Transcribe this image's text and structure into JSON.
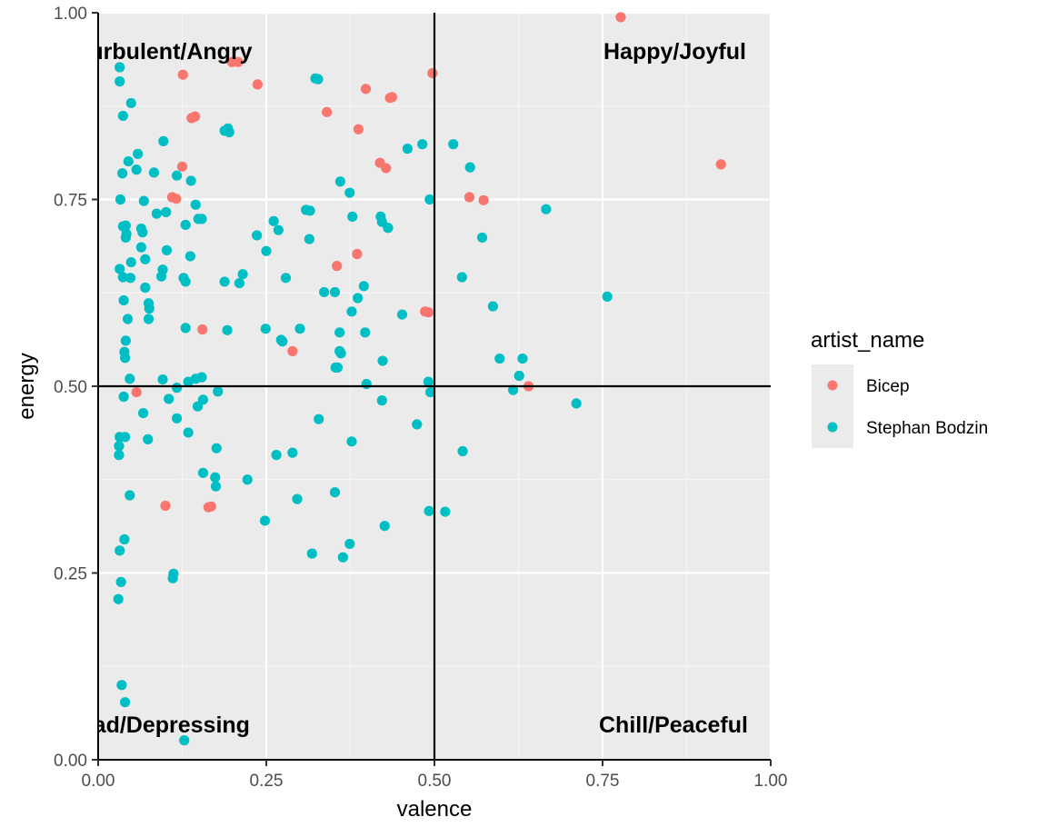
{
  "chart_data": {
    "type": "scatter",
    "xlabel": "valence",
    "ylabel": "energy",
    "xlim": [
      0,
      1
    ],
    "ylim": [
      0,
      1
    ],
    "x_ticks": [
      "0.00",
      "0.25",
      "0.50",
      "0.75",
      "1.00"
    ],
    "y_ticks": [
      "0.00",
      "0.25",
      "0.50",
      "0.75",
      "1.00"
    ],
    "grid": true,
    "reference_lines": {
      "x": 0.5,
      "y": 0.5
    },
    "quadrant_labels": {
      "top_left": "Turbulent/Angry",
      "top_right": "Happy/Joyful",
      "bottom_left": "Sad/Depressing",
      "bottom_right": "Chill/Peaceful"
    },
    "legend": {
      "title": "artist_name",
      "position": "right"
    },
    "series": [
      {
        "name": "Bicep",
        "color": "#F8766D",
        "points": [
          [
            0.777,
            0.994
          ],
          [
            0.199,
            0.934
          ],
          [
            0.208,
            0.934
          ],
          [
            0.126,
            0.917
          ],
          [
            0.497,
            0.919
          ],
          [
            0.237,
            0.904
          ],
          [
            0.398,
            0.898
          ],
          [
            0.434,
            0.886
          ],
          [
            0.437,
            0.887
          ],
          [
            0.34,
            0.867
          ],
          [
            0.139,
            0.859
          ],
          [
            0.144,
            0.861
          ],
          [
            0.387,
            0.844
          ],
          [
            0.419,
            0.799
          ],
          [
            0.428,
            0.792
          ],
          [
            0.125,
            0.794
          ],
          [
            0.926,
            0.797
          ],
          [
            0.11,
            0.753
          ],
          [
            0.116,
            0.751
          ],
          [
            0.552,
            0.753
          ],
          [
            0.573,
            0.749
          ],
          [
            0.385,
            0.677
          ],
          [
            0.355,
            0.661
          ],
          [
            0.486,
            0.6
          ],
          [
            0.491,
            0.599
          ],
          [
            0.155,
            0.576
          ],
          [
            0.289,
            0.547
          ],
          [
            0.057,
            0.492
          ],
          [
            0.64,
            0.5
          ],
          [
            0.1,
            0.34
          ],
          [
            0.164,
            0.338
          ],
          [
            0.168,
            0.339
          ]
        ]
      },
      {
        "name": "Stephan Bodzin",
        "color": "#00BFC4",
        "points": [
          [
            0.032,
            0.927
          ],
          [
            0.032,
            0.908
          ],
          [
            0.049,
            0.879
          ],
          [
            0.037,
            0.862
          ],
          [
            0.323,
            0.912
          ],
          [
            0.327,
            0.911
          ],
          [
            0.188,
            0.842
          ],
          [
            0.193,
            0.845
          ],
          [
            0.195,
            0.84
          ],
          [
            0.097,
            0.828
          ],
          [
            0.46,
            0.818
          ],
          [
            0.482,
            0.824
          ],
          [
            0.528,
            0.824
          ],
          [
            0.059,
            0.811
          ],
          [
            0.045,
            0.801
          ],
          [
            0.057,
            0.79
          ],
          [
            0.083,
            0.786
          ],
          [
            0.036,
            0.785
          ],
          [
            0.117,
            0.782
          ],
          [
            0.138,
            0.775
          ],
          [
            0.36,
            0.774
          ],
          [
            0.553,
            0.793
          ],
          [
            0.374,
            0.759
          ],
          [
            0.033,
            0.75
          ],
          [
            0.068,
            0.748
          ],
          [
            0.145,
            0.743
          ],
          [
            0.493,
            0.75
          ],
          [
            0.309,
            0.736
          ],
          [
            0.315,
            0.735
          ],
          [
            0.666,
            0.737
          ],
          [
            0.087,
            0.731
          ],
          [
            0.101,
            0.733
          ],
          [
            0.149,
            0.724
          ],
          [
            0.154,
            0.724
          ],
          [
            0.378,
            0.727
          ],
          [
            0.42,
            0.727
          ],
          [
            0.422,
            0.72
          ],
          [
            0.261,
            0.721
          ],
          [
            0.037,
            0.714
          ],
          [
            0.041,
            0.715
          ],
          [
            0.13,
            0.716
          ],
          [
            0.431,
            0.712
          ],
          [
            0.042,
            0.704
          ],
          [
            0.064,
            0.711
          ],
          [
            0.066,
            0.706
          ],
          [
            0.268,
            0.709
          ],
          [
            0.236,
            0.702
          ],
          [
            0.041,
            0.699
          ],
          [
            0.314,
            0.697
          ],
          [
            0.571,
            0.699
          ],
          [
            0.064,
            0.686
          ],
          [
            0.102,
            0.682
          ],
          [
            0.25,
            0.681
          ],
          [
            0.07,
            0.67
          ],
          [
            0.137,
            0.674
          ],
          [
            0.049,
            0.666
          ],
          [
            0.032,
            0.657
          ],
          [
            0.096,
            0.656
          ],
          [
            0.215,
            0.65
          ],
          [
            0.279,
            0.645
          ],
          [
            0.037,
            0.646
          ],
          [
            0.048,
            0.645
          ],
          [
            0.094,
            0.647
          ],
          [
            0.127,
            0.645
          ],
          [
            0.13,
            0.64
          ],
          [
            0.188,
            0.64
          ],
          [
            0.21,
            0.638
          ],
          [
            0.395,
            0.634
          ],
          [
            0.541,
            0.646
          ],
          [
            0.07,
            0.632
          ],
          [
            0.336,
            0.626
          ],
          [
            0.352,
            0.626
          ],
          [
            0.386,
            0.618
          ],
          [
            0.757,
            0.62
          ],
          [
            0.038,
            0.615
          ],
          [
            0.075,
            0.611
          ],
          [
            0.076,
            0.604
          ],
          [
            0.587,
            0.607
          ],
          [
            0.377,
            0.6
          ],
          [
            0.452,
            0.596
          ],
          [
            0.044,
            0.59
          ],
          [
            0.075,
            0.59
          ],
          [
            0.13,
            0.578
          ],
          [
            0.192,
            0.575
          ],
          [
            0.249,
            0.577
          ],
          [
            0.3,
            0.577
          ],
          [
            0.359,
            0.572
          ],
          [
            0.397,
            0.572
          ],
          [
            0.041,
            0.561
          ],
          [
            0.272,
            0.562
          ],
          [
            0.274,
            0.56
          ],
          [
            0.039,
            0.546
          ],
          [
            0.359,
            0.547
          ],
          [
            0.361,
            0.544
          ],
          [
            0.04,
            0.538
          ],
          [
            0.597,
            0.537
          ],
          [
            0.631,
            0.537
          ],
          [
            0.423,
            0.534
          ],
          [
            0.353,
            0.525
          ],
          [
            0.356,
            0.525
          ],
          [
            0.047,
            0.51
          ],
          [
            0.096,
            0.509
          ],
          [
            0.145,
            0.51
          ],
          [
            0.154,
            0.512
          ],
          [
            0.134,
            0.506
          ],
          [
            0.399,
            0.503
          ],
          [
            0.491,
            0.506
          ],
          [
            0.626,
            0.514
          ],
          [
            0.117,
            0.498
          ],
          [
            0.178,
            0.493
          ],
          [
            0.617,
            0.495
          ],
          [
            0.494,
            0.492
          ],
          [
            0.038,
            0.486
          ],
          [
            0.105,
            0.483
          ],
          [
            0.156,
            0.482
          ],
          [
            0.422,
            0.481
          ],
          [
            0.148,
            0.473
          ],
          [
            0.711,
            0.477
          ],
          [
            0.067,
            0.464
          ],
          [
            0.117,
            0.457
          ],
          [
            0.328,
            0.456
          ],
          [
            0.474,
            0.449
          ],
          [
            0.134,
            0.438
          ],
          [
            0.032,
            0.432
          ],
          [
            0.04,
            0.432
          ],
          [
            0.074,
            0.429
          ],
          [
            0.377,
            0.426
          ],
          [
            0.031,
            0.42
          ],
          [
            0.176,
            0.417
          ],
          [
            0.031,
            0.408
          ],
          [
            0.265,
            0.408
          ],
          [
            0.289,
            0.411
          ],
          [
            0.542,
            0.413
          ],
          [
            0.156,
            0.384
          ],
          [
            0.174,
            0.378
          ],
          [
            0.222,
            0.375
          ],
          [
            0.175,
            0.366
          ],
          [
            0.352,
            0.358
          ],
          [
            0.047,
            0.354
          ],
          [
            0.296,
            0.349
          ],
          [
            0.492,
            0.333
          ],
          [
            0.516,
            0.332
          ],
          [
            0.248,
            0.32
          ],
          [
            0.426,
            0.313
          ],
          [
            0.039,
            0.295
          ],
          [
            0.374,
            0.289
          ],
          [
            0.032,
            0.28
          ],
          [
            0.318,
            0.276
          ],
          [
            0.364,
            0.271
          ],
          [
            0.112,
            0.249
          ],
          [
            0.111,
            0.243
          ],
          [
            0.034,
            0.238
          ],
          [
            0.03,
            0.215
          ],
          [
            0.035,
            0.1
          ],
          [
            0.04,
            0.077
          ],
          [
            0.128,
            0.026
          ]
        ]
      }
    ]
  }
}
